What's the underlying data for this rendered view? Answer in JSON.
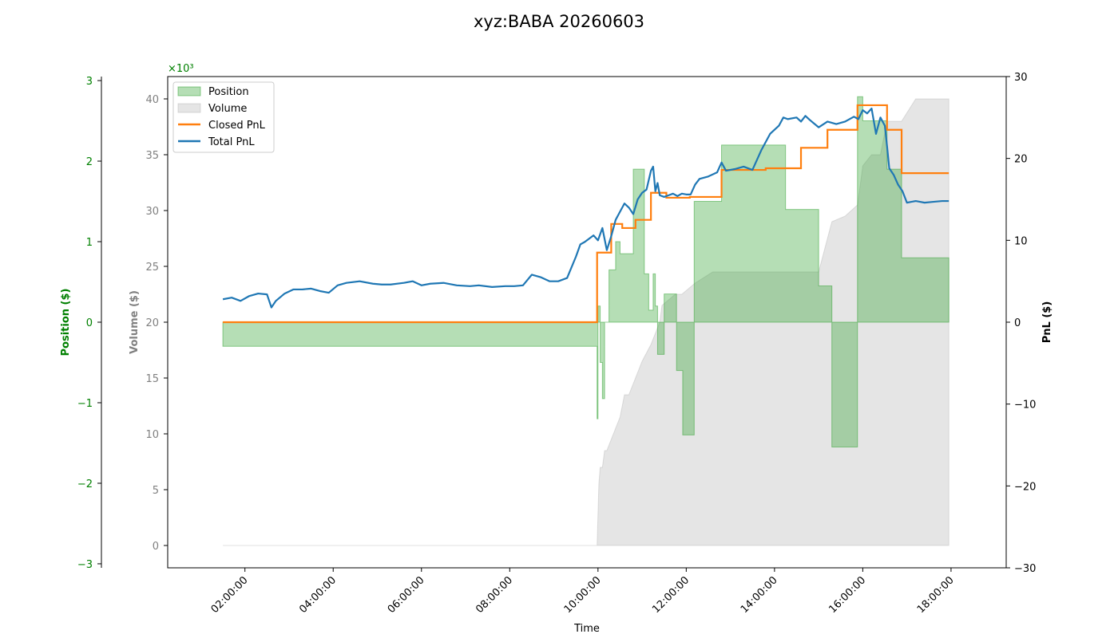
{
  "chart_data": {
    "type": "line",
    "title": "xyz:BABA 20260603",
    "xlabel": "Time",
    "x_range_hours": [
      0.25,
      19.25
    ],
    "x_ticks": [
      "02:00:00",
      "04:00:00",
      "06:00:00",
      "08:00:00",
      "10:00:00",
      "12:00:00",
      "14:00:00",
      "16:00:00",
      "18:00:00"
    ],
    "position_axis": {
      "label": "Position ($)",
      "ylim": [
        -3.05,
        3.05
      ],
      "ticks": [
        "−3",
        "−2",
        "−1",
        "0",
        "1",
        "2",
        "3"
      ],
      "tick_values": [
        -3,
        -2,
        -1,
        0,
        1,
        2,
        3
      ],
      "multiplier": "×10³",
      "color": "#008000"
    },
    "volume_axis": {
      "label": "Volume ($)",
      "ylim": [
        -2000,
        42000
      ],
      "ticks": [
        "0",
        "5",
        "10",
        "15",
        "20",
        "25",
        "30",
        "35",
        "40"
      ],
      "tick_values": [
        0,
        5000,
        10000,
        15000,
        20000,
        25000,
        30000,
        35000,
        40000
      ],
      "color": "#808080"
    },
    "pnl_axis": {
      "label": "PnL ($)",
      "ylim": [
        -30,
        30
      ],
      "ticks": [
        "−30",
        "−20",
        "−10",
        "0",
        "10",
        "20",
        "30"
      ],
      "tick_values": [
        -30,
        -20,
        -10,
        0,
        10,
        20,
        30
      ],
      "color": "#000000"
    },
    "legend": {
      "placement": "upper-left",
      "entries": [
        {
          "name": "Position",
          "color": "#2ca02c",
          "kind": "fill"
        },
        {
          "name": "Volume",
          "color": "#a9a9a9",
          "kind": "fill"
        },
        {
          "name": "Closed PnL",
          "color": "#ff7f0e",
          "kind": "line"
        },
        {
          "name": "Total PnL",
          "color": "#1f77b4",
          "kind": "line"
        }
      ]
    },
    "series": [
      {
        "name": "Position",
        "unit": "$",
        "x_hours": [
          1.5,
          9.98,
          9.98,
          10.0,
          10.0,
          10.05,
          10.05,
          10.1,
          10.1,
          10.15,
          10.15,
          10.25,
          10.25,
          10.4,
          10.4,
          10.5,
          10.5,
          10.8,
          10.8,
          11.05,
          11.05,
          11.15,
          11.15,
          11.25,
          11.25,
          11.3,
          11.3,
          11.35,
          11.35,
          11.5,
          11.5,
          11.65,
          11.65,
          11.78,
          11.78,
          11.92,
          11.92,
          12.18,
          12.18,
          12.58,
          12.58,
          12.8,
          12.8,
          14.25,
          14.25,
          14.6,
          14.6,
          15.0,
          15.0,
          15.3,
          15.3,
          15.88,
          15.88,
          16.0,
          16.0,
          16.55,
          16.55,
          16.88,
          16.88,
          17.95
        ],
        "values_thousands": [
          -0.3,
          -0.3,
          -1.2,
          -1.2,
          0.2,
          0.2,
          -0.5,
          -0.5,
          -0.95,
          -0.95,
          0.0,
          0.0,
          0.65,
          0.65,
          1.0,
          1.0,
          0.85,
          0.85,
          1.9,
          1.9,
          0.6,
          0.6,
          0.15,
          0.15,
          0.6,
          0.6,
          0.2,
          0.2,
          -0.4,
          -0.4,
          0.35,
          0.35,
          0.35,
          0.35,
          -0.6,
          -0.6,
          -1.4,
          -1.4,
          1.5,
          1.5,
          1.5,
          1.5,
          2.2,
          2.2,
          1.4,
          1.4,
          1.4,
          1.4,
          0.45,
          0.45,
          -1.55,
          -1.55,
          2.8,
          2.8,
          2.5,
          2.5,
          1.9,
          1.9,
          0.8,
          0.8
        ]
      },
      {
        "name": "Volume",
        "unit": "$",
        "x_hours": [
          1.5,
          9.98,
          10.02,
          10.05,
          10.1,
          10.15,
          10.2,
          10.3,
          10.4,
          10.5,
          10.55,
          10.6,
          10.7,
          10.8,
          11.0,
          11.2,
          11.4,
          11.45,
          11.6,
          11.75,
          11.9,
          12.2,
          12.6,
          12.8,
          13.5,
          14.25,
          14.6,
          15.0,
          15.3,
          15.6,
          15.88,
          15.95,
          16.0,
          16.2,
          16.4,
          16.55,
          16.88,
          17.2,
          17.95
        ],
        "values": [
          0,
          0,
          5500,
          7000,
          7000,
          8500,
          8500,
          9500,
          10500,
          11500,
          12500,
          13500,
          13500,
          14500,
          16500,
          18000,
          20000,
          21500,
          22000,
          22500,
          22500,
          23500,
          24500,
          24500,
          24500,
          24500,
          24500,
          24500,
          29000,
          29500,
          30500,
          32500,
          34000,
          35000,
          35000,
          38000,
          38000,
          40000,
          40000
        ]
      },
      {
        "name": "Closed PnL",
        "unit": "$",
        "x_hours": [
          1.5,
          9.98,
          9.98,
          10.3,
          10.3,
          10.55,
          10.55,
          10.85,
          10.85,
          11.2,
          11.2,
          11.55,
          11.55,
          12.08,
          12.08,
          12.8,
          12.8,
          13.8,
          13.8,
          14.6,
          14.6,
          15.2,
          15.2,
          15.88,
          15.88,
          16.55,
          16.55,
          16.88,
          16.88,
          17.95
        ],
        "values": [
          0,
          0,
          8.5,
          8.5,
          12.0,
          12.0,
          11.5,
          11.5,
          12.5,
          12.5,
          15.8,
          15.8,
          15.2,
          15.2,
          15.3,
          15.3,
          18.6,
          18.6,
          18.8,
          18.8,
          21.3,
          21.3,
          23.5,
          23.5,
          26.5,
          26.5,
          23.5,
          23.5,
          18.2,
          18.2
        ]
      },
      {
        "name": "Total PnL",
        "unit": "$",
        "x_hours": [
          1.5,
          1.7,
          1.9,
          2.1,
          2.3,
          2.5,
          2.6,
          2.7,
          2.9,
          3.1,
          3.3,
          3.5,
          3.7,
          3.9,
          4.1,
          4.3,
          4.6,
          4.9,
          5.1,
          5.3,
          5.6,
          5.8,
          6.0,
          6.2,
          6.5,
          6.8,
          7.1,
          7.3,
          7.6,
          7.9,
          8.1,
          8.3,
          8.5,
          8.7,
          8.9,
          9.1,
          9.3,
          9.5,
          9.6,
          9.7,
          9.8,
          9.9,
          10.0,
          10.1,
          10.2,
          10.3,
          10.4,
          10.5,
          10.6,
          10.7,
          10.8,
          10.9,
          11.0,
          11.1,
          11.2,
          11.25,
          11.3,
          11.35,
          11.4,
          11.5,
          11.6,
          11.7,
          11.8,
          11.9,
          12.0,
          12.1,
          12.2,
          12.3,
          12.5,
          12.7,
          12.8,
          12.9,
          13.1,
          13.3,
          13.5,
          13.7,
          13.9,
          14.0,
          14.1,
          14.2,
          14.3,
          14.5,
          14.6,
          14.7,
          14.8,
          15.0,
          15.2,
          15.4,
          15.6,
          15.8,
          15.9,
          16.0,
          16.1,
          16.2,
          16.3,
          16.4,
          16.5,
          16.55,
          16.6,
          16.7,
          16.8,
          16.9,
          17.0,
          17.2,
          17.4,
          17.6,
          17.8,
          17.95
        ],
        "values": [
          2.8,
          3.0,
          2.6,
          3.2,
          3.5,
          3.4,
          1.8,
          2.6,
          3.5,
          4.0,
          4.0,
          4.1,
          3.8,
          3.6,
          4.5,
          4.8,
          5.0,
          4.7,
          4.6,
          4.6,
          4.8,
          5.0,
          4.5,
          4.7,
          4.8,
          4.5,
          4.4,
          4.5,
          4.3,
          4.4,
          4.4,
          4.5,
          5.8,
          5.5,
          5.0,
          5.0,
          5.4,
          8.0,
          9.5,
          9.8,
          10.2,
          10.6,
          10.0,
          11.5,
          8.8,
          10.5,
          12.5,
          13.5,
          14.5,
          14.0,
          13.2,
          15.0,
          15.8,
          16.2,
          18.5,
          19.0,
          16.0,
          17.0,
          15.5,
          15.3,
          15.5,
          15.7,
          15.4,
          15.7,
          15.6,
          15.6,
          16.8,
          17.5,
          17.8,
          18.3,
          19.5,
          18.5,
          18.7,
          19.0,
          18.6,
          21.0,
          23.0,
          23.5,
          24.0,
          25.0,
          24.8,
          25.0,
          24.5,
          25.2,
          24.7,
          23.8,
          24.5,
          24.2,
          24.5,
          25.1,
          24.8,
          25.9,
          25.5,
          26.1,
          23.0,
          25.0,
          24.0,
          21.5,
          18.8,
          18.0,
          16.8,
          16.0,
          14.6,
          14.8,
          14.6,
          14.7,
          14.8,
          14.8
        ]
      }
    ]
  }
}
